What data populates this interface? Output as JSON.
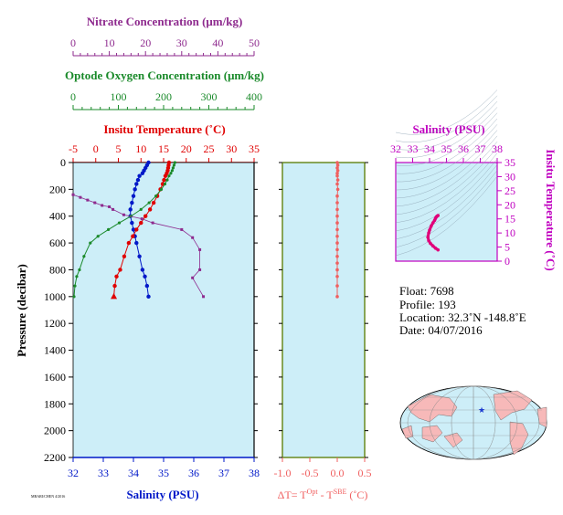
{
  "axes": {
    "nitrate": {
      "label": "Nitrate Concentration (μm/kg)",
      "ticks": [
        "0",
        "10",
        "20",
        "30",
        "40",
        "50"
      ],
      "range": [
        0,
        50
      ],
      "color": "#8e2a8e"
    },
    "oxygen": {
      "label": "Optode Oxygen Concentration (μm/kg)",
      "ticks": [
        "0",
        "100",
        "200",
        "300",
        "400"
      ],
      "range": [
        0,
        400
      ],
      "color": "#1a8a2a"
    },
    "temperature": {
      "label": "Insitu Temperature (˚C)",
      "ticks": [
        "-5",
        "0",
        "5",
        "10",
        "15",
        "20",
        "25",
        "30",
        "35"
      ],
      "range": [
        -5,
        35
      ],
      "color": "#e00000"
    },
    "salinity": {
      "label": "Salinity (PSU)",
      "ticks": [
        "32",
        "33",
        "34",
        "35",
        "36",
        "37",
        "38"
      ],
      "range": [
        32,
        38
      ],
      "color": "#0018c8"
    },
    "pressure": {
      "label": "Pressure (decibar)",
      "ticks": [
        "0",
        "200",
        "400",
        "600",
        "800",
        "1000",
        "1200",
        "1400",
        "1600",
        "1800",
        "2000",
        "2200"
      ],
      "range": [
        0,
        2200
      ],
      "color": "#000000"
    },
    "delta_t": {
      "label_main": "ΔT= T",
      "label_sup1": "Opt",
      "label_mid": " - T",
      "label_sup2": "SBE",
      "label_end": " (˚C)",
      "ticks": [
        "-1.0",
        "-0.5",
        "0.0",
        "0.5"
      ],
      "range": [
        -1.0,
        0.5
      ],
      "color": "#f06060"
    },
    "ts_salinity": {
      "label": "Salinity (PSU)",
      "ticks": [
        "32",
        "33",
        "34",
        "35",
        "36",
        "37",
        "38"
      ],
      "range": [
        32,
        38
      ],
      "color": "#c000c0"
    },
    "ts_temperature": {
      "label": "Insitu Temperature (˚C)",
      "ticks": [
        "0",
        "5",
        "10",
        "15",
        "20",
        "25",
        "30",
        "35"
      ],
      "range": [
        0,
        35
      ],
      "color": "#c000c0"
    }
  },
  "info": {
    "float": "Float:  7698",
    "profile": "Profile:  193",
    "location": "Location:  32.3˚N  -148.8˚E",
    "date": "Date:  04/07/2016"
  },
  "colors": {
    "panel_bg": "#cdeef8",
    "map_land": "#f7b9b9",
    "map_ocean": "#cdeef8",
    "float_marker": "#1a3ad0"
  },
  "chart_data": [
    {
      "type": "line",
      "name": "profile",
      "series": [
        {
          "name": "salinity",
          "color": "#0018c8",
          "x_axis": "salinity",
          "x": [
            34.5,
            34.45,
            34.4,
            34.35,
            34.3,
            34.2,
            34.15,
            34.1,
            34.05,
            34.0,
            33.95,
            33.9,
            33.9,
            33.95,
            34.0,
            34.05,
            34.1,
            34.2,
            34.3,
            34.38,
            34.45,
            34.5
          ],
          "y": [
            0,
            20,
            40,
            60,
            80,
            100,
            130,
            160,
            200,
            250,
            300,
            350,
            400,
            450,
            500,
            550,
            600,
            700,
            800,
            850,
            920,
            1000
          ]
        },
        {
          "name": "temperature",
          "color": "#e00000",
          "x_axis": "temperature",
          "x": [
            16.2,
            16.1,
            16.0,
            15.9,
            15.7,
            15.4,
            15.1,
            14.8,
            14.3,
            13.6,
            12.8,
            12.0,
            11.0,
            10.0,
            9.0,
            8.2,
            7.3,
            6.3,
            5.4,
            4.6,
            4.2,
            4.0
          ],
          "y": [
            0,
            20,
            40,
            60,
            80,
            100,
            130,
            160,
            200,
            250,
            300,
            350,
            400,
            450,
            500,
            550,
            600,
            700,
            800,
            850,
            920,
            1000
          ]
        },
        {
          "name": "oxygen",
          "color": "#1a8a2a",
          "x_axis": "oxygen",
          "x": [
            225,
            223,
            221,
            219,
            216,
            212,
            208,
            203,
            195,
            183,
            168,
            150,
            128,
            102,
            78,
            55,
            38,
            24,
            14,
            8,
            4,
            2
          ],
          "y": [
            0,
            20,
            40,
            60,
            80,
            100,
            130,
            160,
            200,
            250,
            300,
            350,
            400,
            450,
            500,
            550,
            600,
            700,
            800,
            850,
            920,
            1000
          ]
        },
        {
          "name": "nitrate",
          "color": "#8e2a8e",
          "x_axis": "nitrate",
          "x": [
            0,
            2,
            4,
            6,
            8,
            10,
            11,
            14,
            19,
            22,
            30,
            33,
            35,
            35,
            33,
            36
          ],
          "y": [
            240,
            260,
            280,
            300,
            320,
            330,
            350,
            390,
            420,
            450,
            500,
            560,
            650,
            800,
            860,
            1000
          ]
        }
      ],
      "ylim": [
        0,
        2200
      ],
      "ylabel": "Pressure (decibar)",
      "xlabel": "Salinity (PSU)"
    },
    {
      "type": "scatter",
      "name": "delta-t",
      "series": [
        {
          "name": "delta_t",
          "color": "#f06060",
          "x": [
            0.0,
            0.01,
            0.0,
            0.01,
            0.0,
            0.0,
            0.01,
            0.0,
            0.01,
            0.0,
            0.0,
            0.0,
            0.0,
            0.0,
            0.0,
            0.0,
            0.0,
            0.0,
            0.0,
            0.0,
            0.0,
            0.0,
            0.0,
            0.0
          ],
          "y": [
            0,
            20,
            40,
            60,
            80,
            100,
            130,
            160,
            200,
            250,
            300,
            350,
            400,
            450,
            500,
            550,
            600,
            650,
            700,
            750,
            800,
            850,
            920,
            1000
          ]
        }
      ],
      "xlim": [
        -1.0,
        0.5
      ],
      "ylim": [
        0,
        2200
      ]
    },
    {
      "type": "line",
      "name": "ts-diagram",
      "series": [
        {
          "name": "t-s",
          "color": "#e0007a",
          "x": [
            34.5,
            34.45,
            34.4,
            34.35,
            34.3,
            34.2,
            34.1,
            34.0,
            33.95,
            33.9,
            33.95,
            34.05,
            34.2,
            34.35,
            34.5
          ],
          "y": [
            16.2,
            16.0,
            15.7,
            15.2,
            14.5,
            13.6,
            12.5,
            11.0,
            10.0,
            8.5,
            7.3,
            6.3,
            5.4,
            4.6,
            4.0
          ]
        }
      ],
      "xlim": [
        32,
        38
      ],
      "ylim": [
        0,
        35
      ]
    }
  ]
}
